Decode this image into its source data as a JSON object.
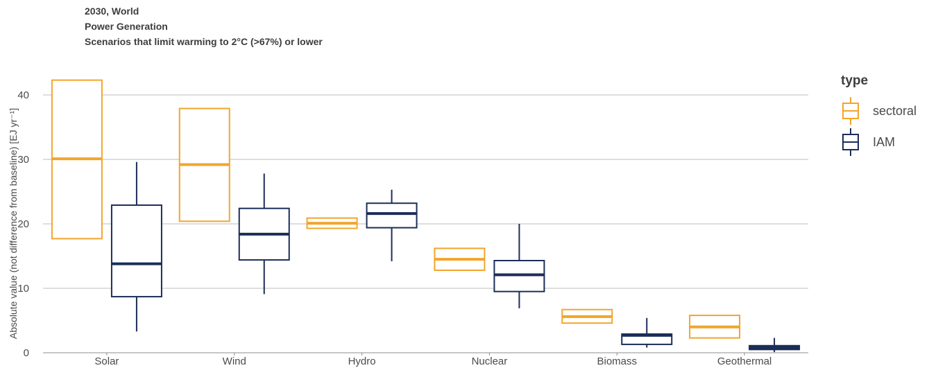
{
  "title_lines": [
    "2030, World",
    "Power Generation",
    "Scenarios that limit warming to 2°C (>67%) or lower"
  ],
  "colors": {
    "sectoral": "#f2a52b",
    "IAM": "#1b2d57",
    "grid": "#bdbdbd",
    "text": "#4a4a4a"
  },
  "chart_data": {
    "type": "boxplot",
    "ylabel": "Absolute value (not difference from baseline) [EJ yr⁻¹]",
    "ylim": [
      0,
      44
    ],
    "yticks": [
      0,
      10,
      20,
      30,
      40
    ],
    "grid": true,
    "legend": {
      "title": "type",
      "placement": "right",
      "entries": [
        "sectoral",
        "IAM"
      ]
    },
    "categories": [
      "Solar",
      "Wind",
      "Hydro",
      "Nuclear",
      "Biomass",
      "Geothermal"
    ],
    "series": [
      {
        "name": "sectoral",
        "boxes": [
          {
            "whisker_low": 17.7,
            "q1": 17.7,
            "median": 30.1,
            "q3": 42.3,
            "whisker_high": 42.3
          },
          {
            "whisker_low": 20.4,
            "q1": 20.4,
            "median": 29.2,
            "q3": 37.9,
            "whisker_high": 37.9
          },
          {
            "whisker_low": 19.3,
            "q1": 19.3,
            "median": 20.1,
            "q3": 20.9,
            "whisker_high": 20.9
          },
          {
            "whisker_low": 12.8,
            "q1": 12.8,
            "median": 14.5,
            "q3": 16.2,
            "whisker_high": 16.2
          },
          {
            "whisker_low": 4.6,
            "q1": 4.6,
            "median": 5.6,
            "q3": 6.7,
            "whisker_high": 6.7
          },
          {
            "whisker_low": 2.3,
            "q1": 2.3,
            "median": 4.0,
            "q3": 5.8,
            "whisker_high": 5.8
          }
        ]
      },
      {
        "name": "IAM",
        "boxes": [
          {
            "whisker_low": 3.3,
            "q1": 8.7,
            "median": 13.8,
            "q3": 22.9,
            "whisker_high": 29.6
          },
          {
            "whisker_low": 9.1,
            "q1": 14.4,
            "median": 18.4,
            "q3": 22.4,
            "whisker_high": 27.8
          },
          {
            "whisker_low": 14.2,
            "q1": 19.4,
            "median": 21.6,
            "q3": 23.2,
            "whisker_high": 25.3
          },
          {
            "whisker_low": 6.9,
            "q1": 9.5,
            "median": 12.1,
            "q3": 14.3,
            "whisker_high": 20.0
          },
          {
            "whisker_low": 0.8,
            "q1": 1.3,
            "median": 2.7,
            "q3": 2.9,
            "whisker_high": 5.4
          },
          {
            "whisker_low": 0.1,
            "q1": 0.5,
            "median": 0.8,
            "q3": 1.1,
            "whisker_high": 2.3
          }
        ]
      }
    ]
  }
}
